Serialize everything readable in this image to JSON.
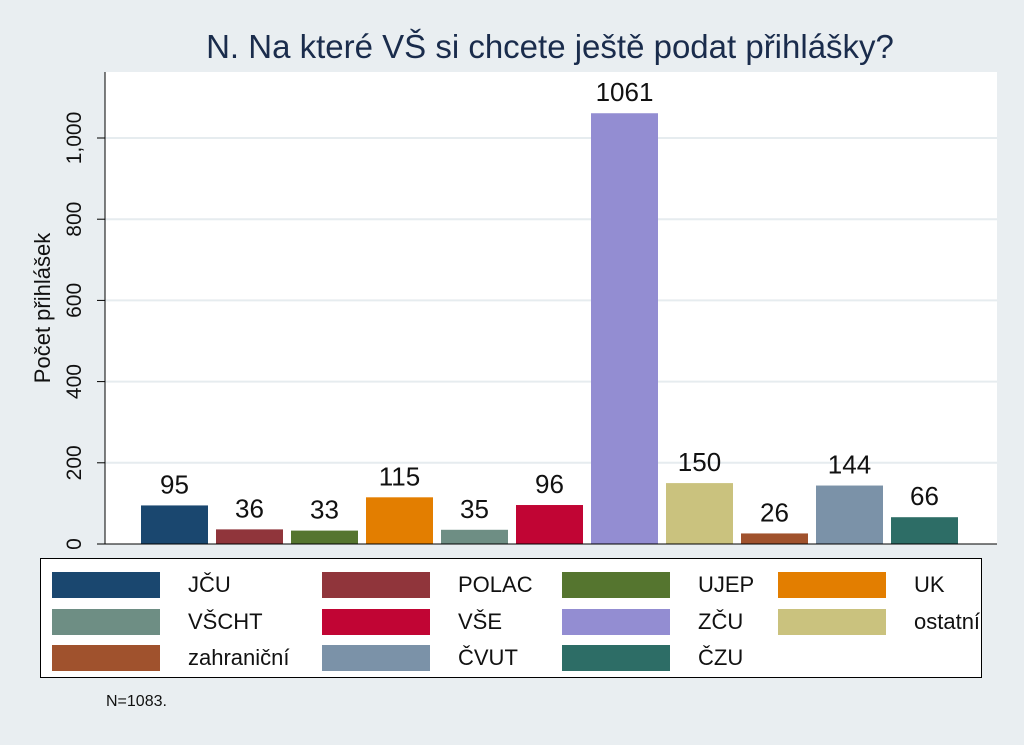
{
  "chart_data": {
    "type": "bar",
    "title": "N. Na které VŠ si chcete ještě podat přihlášky?",
    "ylabel": "Počet přihlášek",
    "xlabel": "",
    "ylim": [
      0,
      1100
    ],
    "yticks": [
      0,
      200,
      400,
      600,
      800,
      1000
    ],
    "ytick_labels": [
      "0",
      "200",
      "400",
      "600",
      "800",
      "1,000"
    ],
    "grid": true,
    "legend_position": "bottom",
    "categories": [
      "JČU",
      "POLAC",
      "UJEP",
      "UK",
      "VŠCHT",
      "VŠE",
      "ZČU",
      "ostatní",
      "zahraniční",
      "ČVUT",
      "ČZU"
    ],
    "values": [
      95,
      36,
      33,
      115,
      35,
      96,
      1061,
      150,
      26,
      144,
      66
    ],
    "colors": [
      "#1a476f",
      "#90353b",
      "#55752f",
      "#e37e00",
      "#6e8e84",
      "#c10534",
      "#938dd2",
      "#cac27e",
      "#a0522d",
      "#7b92a8",
      "#2d6d66"
    ]
  },
  "footnote": "N=1083."
}
